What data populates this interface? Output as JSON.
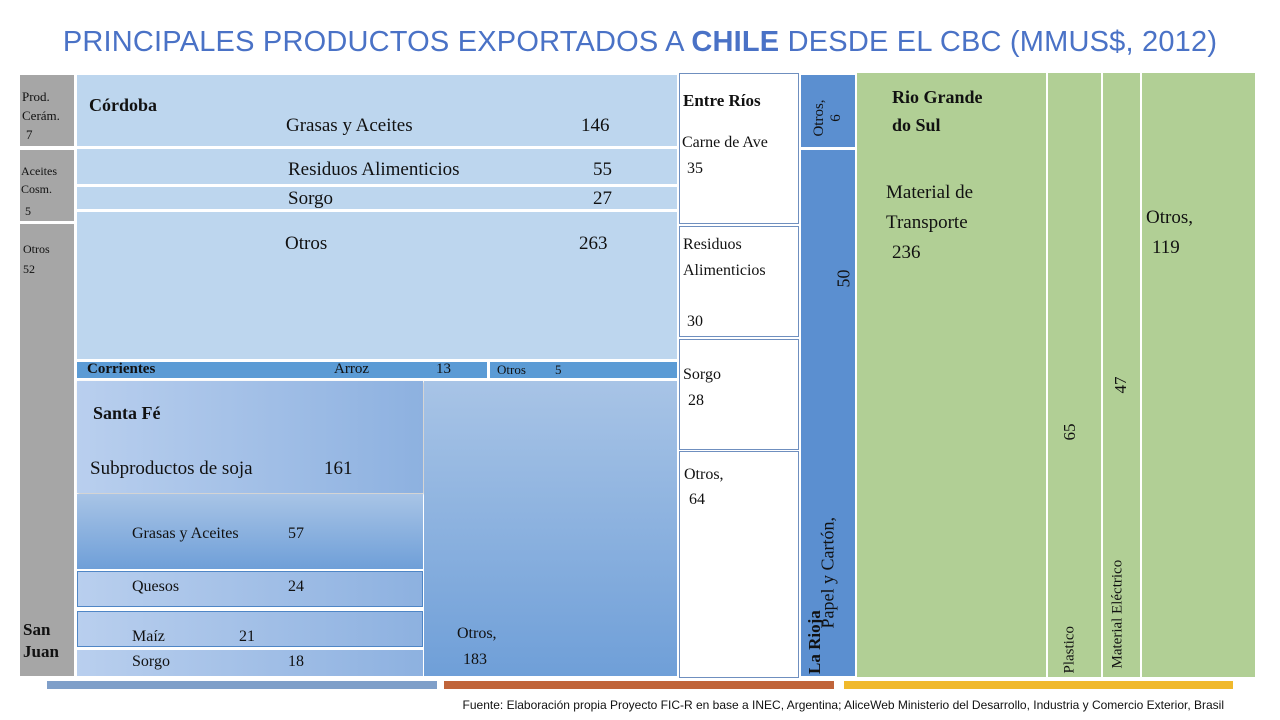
{
  "title": {
    "part1": "PRINCIPALES PRODUCTOS EXPORTADOS A ",
    "bold": "CHILE",
    "part2": " DESDE EL CBC (MMUS$, 2012)"
  },
  "san_juan": {
    "name": "San Juan",
    "name_l1": "San",
    "name_l2": "Juan",
    "items": [
      {
        "l1": "Prod.",
        "l2": "Cerám.",
        "value": "7"
      },
      {
        "l1": "Aceites",
        "l2": "Cosm.",
        "value": "5"
      },
      {
        "l1": "Otros",
        "value": "52"
      }
    ]
  },
  "cordoba": {
    "name": "Córdoba",
    "items": [
      {
        "label": "Grasas y Aceites",
        "value": "146"
      },
      {
        "label": "Residuos Alimenticios",
        "value": "55"
      },
      {
        "label": "Sorgo",
        "value": "27"
      },
      {
        "label": "Otros",
        "value": "263"
      }
    ]
  },
  "corrientes": {
    "name": "Corrientes",
    "items": [
      {
        "label": "Arroz",
        "value": "13"
      },
      {
        "label": "Otros",
        "value": "5"
      }
    ]
  },
  "santa_fe": {
    "name": "Santa Fé",
    "items": [
      {
        "label": "Subproductos de soja",
        "value": "161"
      },
      {
        "label": "Grasas y Aceites",
        "value": "57"
      },
      {
        "label": "Quesos",
        "value": "24"
      },
      {
        "label": "Maíz",
        "value": "21"
      },
      {
        "label": "Sorgo",
        "value": "18"
      },
      {
        "label": "Otros,",
        "value": "183"
      }
    ]
  },
  "entre_rios": {
    "name": "Entre Ríos",
    "items": [
      {
        "l1": "Carne de Ave",
        "value": "35"
      },
      {
        "l1": "Residuos",
        "l2": "Alimenticios",
        "value": "30"
      },
      {
        "l1": "Sorgo",
        "value": "28"
      },
      {
        "l1": "Otros,",
        "value": "64"
      }
    ]
  },
  "la_rioja": {
    "name": "La Rioja",
    "items": [
      {
        "label": "Otros,",
        "value": "6"
      },
      {
        "label": "Papel y Cartón,",
        "value": "50"
      }
    ]
  },
  "rio_grande": {
    "name_l1": "Rio Grande",
    "name_l2": "do Sul",
    "items": [
      {
        "l1": "Material de",
        "l2": "Transporte",
        "value": "236"
      },
      {
        "label": "Plastico",
        "value": "65"
      },
      {
        "label": "Material Eléctrico",
        "value": "47"
      },
      {
        "label": "Otros,",
        "value": "119"
      }
    ]
  },
  "footer": {
    "source": "Fuente: Elaboración propia Proyecto FIC-R en base a INEC, Argentina;  AliceWeb Ministerio del Desarrollo, Industria y Comercio Exterior, Brasil",
    "bar_colors": [
      "#7f9fc9",
      "#c0643a",
      "#f0b92c"
    ]
  }
}
